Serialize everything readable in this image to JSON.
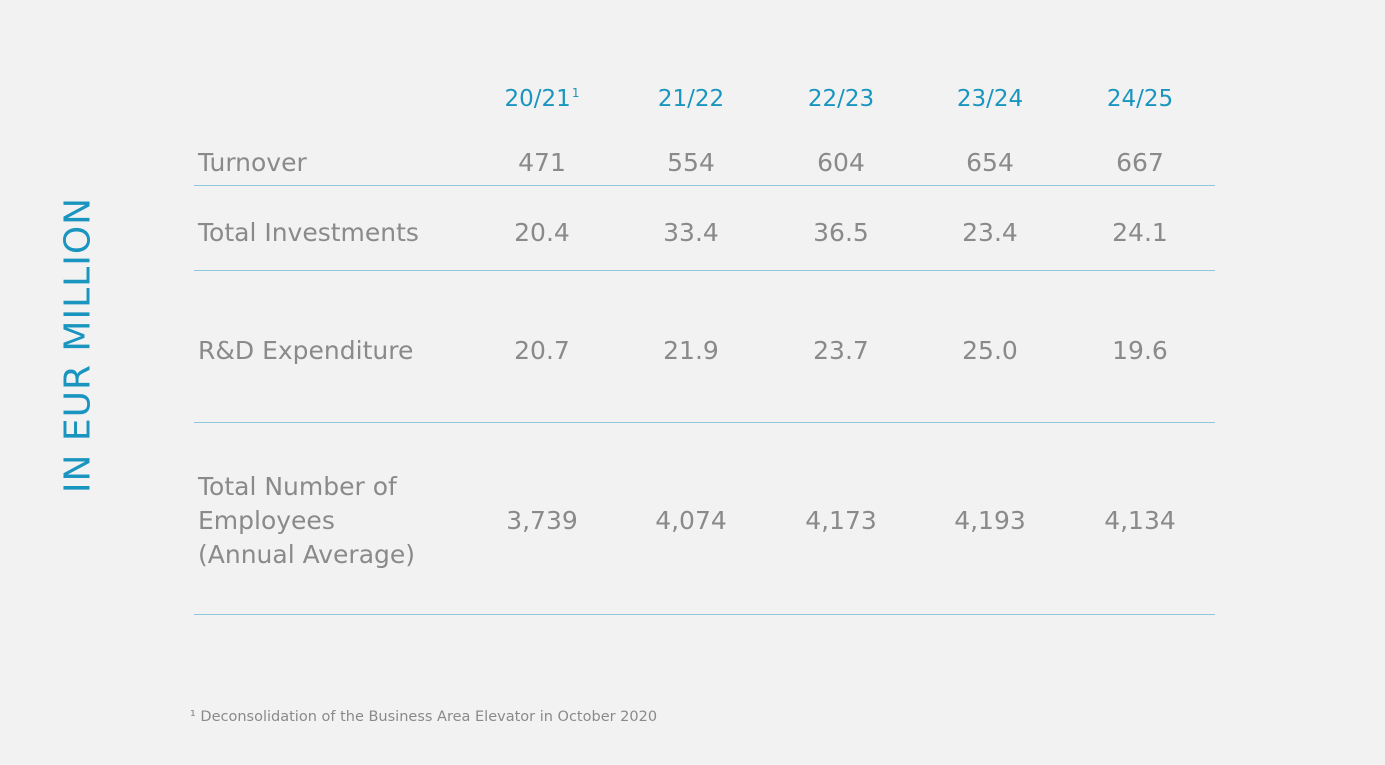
{
  "side_label": "IN EUR MILLION",
  "columns": [
    {
      "label": "20/21",
      "sup": "1"
    },
    {
      "label": "21/22",
      "sup": ""
    },
    {
      "label": "22/23",
      "sup": ""
    },
    {
      "label": "23/24",
      "sup": ""
    },
    {
      "label": "24/25",
      "sup": ""
    }
  ],
  "rows": [
    {
      "label_lines": [
        "Turnover"
      ],
      "values": [
        "471",
        "554",
        "604",
        "654",
        "667"
      ]
    },
    {
      "label_lines": [
        "Total Investments"
      ],
      "values": [
        "20.4",
        "33.4",
        "36.5",
        "23.4",
        "24.1"
      ]
    },
    {
      "label_lines": [
        "R&D Expenditure"
      ],
      "values": [
        "20.7",
        "21.9",
        "23.7",
        "25.0",
        "19.6"
      ]
    },
    {
      "label_lines": [
        "Total Number of",
        "Employees",
        "(Annual Average)"
      ],
      "values": [
        "3,739",
        "4,074",
        "4,173",
        "4,193",
        "4,134"
      ]
    }
  ],
  "footnote": "¹ Deconsolidation of the Business Area Elevator in October 2020",
  "colors": {
    "accent": "#1a95bf",
    "text": "#8a8a8a",
    "rule": "#8fc7dc",
    "background": "#f2f2f2"
  }
}
